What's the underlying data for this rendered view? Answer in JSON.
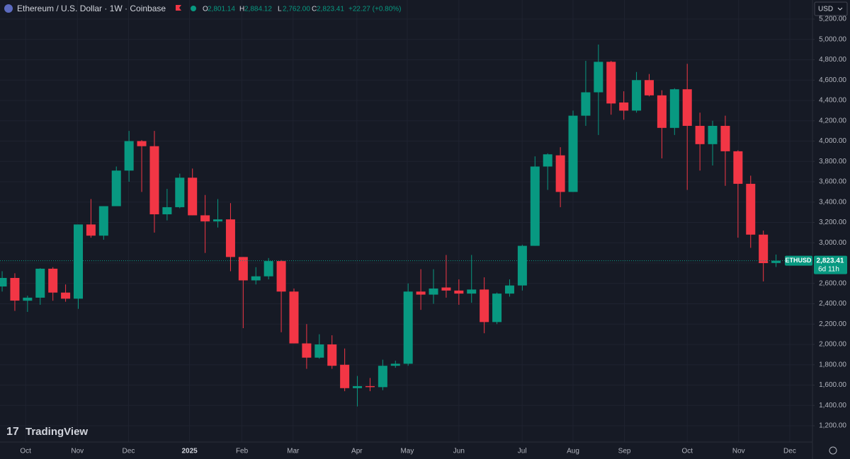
{
  "header": {
    "title": "Ethereum / U.S. Dollar · 1W · Coinbase",
    "ohlc": [
      {
        "key": "O",
        "label": "2,801.14"
      },
      {
        "key": "H",
        "label": "2,884.12"
      },
      {
        "key": "L",
        "label": "2,762.00"
      },
      {
        "key": "C",
        "label": "2,823.41"
      }
    ],
    "change": "+22.27 (+0.80%)",
    "currency": "USD"
  },
  "brand": "TradingView",
  "chart_data": {
    "type": "candlestick",
    "up_color": "#089981",
    "down_color": "#f23645",
    "grid": true,
    "open": [
      2570,
      2654,
      2430,
      2460,
      2745,
      2510,
      2450,
      3180,
      3070,
      3360,
      3710,
      4000,
      3950,
      3280,
      3350,
      3640,
      3270,
      3210,
      3230,
      2860,
      2630,
      2670,
      2820,
      2520,
      2010,
      1870,
      2000,
      1800,
      1570,
      1590,
      1580,
      1790,
      1810,
      2520,
      2490,
      2560,
      2530,
      2500,
      2540,
      2220,
      2500,
      2580,
      2970,
      3750,
      3860,
      3500,
      4250,
      4480,
      4780,
      4380,
      4300,
      4600,
      4450,
      4130,
      4510,
      4150,
      3970,
      4150,
      3900,
      3580,
      3080,
      2801.14
    ],
    "high": [
      2720,
      2700,
      2480,
      2750,
      2760,
      2590,
      3180,
      3430,
      3360,
      3750,
      4100,
      4010,
      4100,
      3530,
      3680,
      3730,
      3470,
      3430,
      3390,
      2860,
      2760,
      2850,
      2830,
      2550,
      2200,
      2100,
      2090,
      1960,
      1690,
      1670,
      1850,
      1840,
      2600,
      2740,
      2740,
      2880,
      2640,
      2880,
      2660,
      2510,
      2640,
      2980,
      3850,
      3880,
      3940,
      4300,
      4790,
      4950,
      4790,
      4490,
      4680,
      4660,
      4500,
      4520,
      4760,
      4280,
      4200,
      4250,
      3910,
      3660,
      3120,
      2884.12
    ],
    "low": [
      2520,
      2330,
      2320,
      2390,
      2430,
      2420,
      2350,
      3050,
      3030,
      3360,
      3600,
      3500,
      3100,
      3220,
      3340,
      3270,
      2900,
      3150,
      2720,
      2160,
      2590,
      2640,
      2120,
      2010,
      1760,
      1860,
      1760,
      1540,
      1390,
      1540,
      1550,
      1770,
      1790,
      2340,
      2400,
      2460,
      2390,
      2410,
      2110,
      2200,
      2470,
      2530,
      2970,
      3520,
      3350,
      3500,
      4150,
      4060,
      4260,
      4210,
      4280,
      4440,
      3830,
      4060,
      3520,
      3710,
      3760,
      3560,
      3050,
      2950,
      2620,
      2762.0
    ],
    "close": [
      2654,
      2431,
      2460,
      2745,
      2510,
      2450,
      3180,
      3070,
      3360,
      3710,
      4000,
      3950,
      3280,
      3350,
      3640,
      3270,
      3210,
      3230,
      2860,
      2630,
      2670,
      2820,
      2520,
      2010,
      1870,
      2000,
      1790,
      1570,
      1590,
      1580,
      1790,
      1810,
      2520,
      2490,
      2550,
      2530,
      2500,
      2540,
      2220,
      2500,
      2580,
      2970,
      3750,
      3870,
      3500,
      4250,
      4480,
      4780,
      4370,
      4300,
      4600,
      4450,
      4130,
      4510,
      4150,
      3970,
      4150,
      3900,
      3580,
      3080,
      2800,
      2823.41
    ],
    "ylim": [
      1040,
      5388
    ],
    "yticks": [
      {
        "value": 1200,
        "label": "1,200.00"
      },
      {
        "value": 1400,
        "label": "1,400.00"
      },
      {
        "value": 1600,
        "label": "1,600.00"
      },
      {
        "value": 1800,
        "label": "1,800.00"
      },
      {
        "value": 2000,
        "label": "2,000.00"
      },
      {
        "value": 2200,
        "label": "2,200.00"
      },
      {
        "value": 2400,
        "label": "2,400.00"
      },
      {
        "value": 2600,
        "label": "2,600.00"
      },
      {
        "value": 2800,
        "label": "2,800.00"
      },
      {
        "value": 3000,
        "label": "3,000.00"
      },
      {
        "value": 3200,
        "label": "3,200.00"
      },
      {
        "value": 3400,
        "label": "3,400.00"
      },
      {
        "value": 3600,
        "label": "3,600.00"
      },
      {
        "value": 3800,
        "label": "3,800.00"
      },
      {
        "value": 4000,
        "label": "4,000.00"
      },
      {
        "value": 4200,
        "label": "4,200.00"
      },
      {
        "value": 4400,
        "label": "4,400.00"
      },
      {
        "value": 4600,
        "label": "4,600.00"
      },
      {
        "value": 4800,
        "label": "4,800.00"
      },
      {
        "value": 5000,
        "label": "5,000.00"
      },
      {
        "value": 5200,
        "label": "5,200.00"
      }
    ],
    "xlim": [
      -0.17,
      63.87
    ],
    "xticks": [
      {
        "value": 1.85,
        "label": "Oct"
      },
      {
        "value": 5.93,
        "label": "Nov"
      },
      {
        "value": 9.96,
        "label": "Dec"
      },
      {
        "value": 14.77,
        "label": "2025"
      },
      {
        "value": 18.9,
        "label": "Feb"
      },
      {
        "value": 22.93,
        "label": "Mar"
      },
      {
        "value": 27.96,
        "label": "Apr"
      },
      {
        "value": 31.93,
        "label": "May"
      },
      {
        "value": 36.0,
        "label": "Jun"
      },
      {
        "value": 40.99,
        "label": "Jul"
      },
      {
        "value": 45.0,
        "label": "Aug"
      },
      {
        "value": 49.05,
        "label": "Sep"
      },
      {
        "value": 54.0,
        "label": "Oct"
      },
      {
        "value": 58.05,
        "label": "Nov"
      },
      {
        "value": 62.08,
        "label": "Dec"
      }
    ],
    "last_price": {
      "symbol": "ETHUSD",
      "label": "2,823.41",
      "countdown": "6d 11h"
    }
  }
}
